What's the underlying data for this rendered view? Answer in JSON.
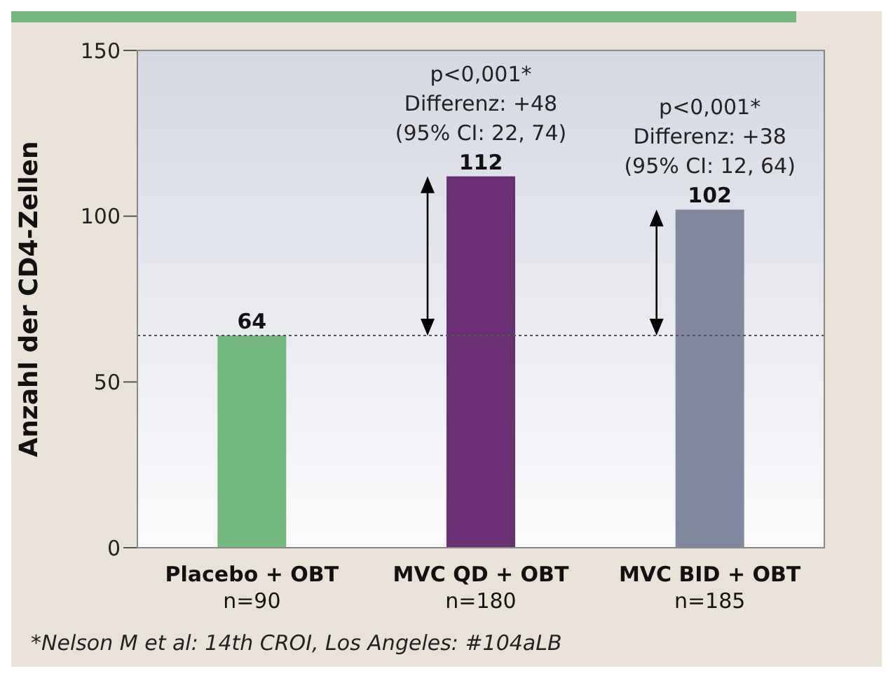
{
  "chart_data": {
    "type": "bar",
    "ylabel": "Anzahl der CD4-Zellen",
    "categories": [
      "Placebo + OBT\nn=90",
      "MVC QD + OBT\nn=180",
      "MVC BID + OBT\nn=185"
    ],
    "values": [
      64,
      112,
      102
    ],
    "colors": [
      "#72b97d",
      "#6b2f76",
      "#82889e"
    ],
    "ylim": [
      0,
      150
    ],
    "yticks": [
      0,
      50,
      100,
      150
    ],
    "grid": false,
    "data_labels": true,
    "ref_lines": [
      {
        "axis": "y",
        "value": 64,
        "line_style": "dotted",
        "color": "#555555"
      }
    ],
    "annotations": [
      {
        "text": "p<0,001*\nDifferenz: +48\n(95% CI: 22, 74)",
        "x": "MVC QD + OBT\nn=180",
        "y": 112
      },
      {
        "text": "p<0,001*\nDifferenz: +38\n(95% CI: 12, 64)",
        "x": "MVC BID + OBT\nn=185",
        "y": 102
      },
      "*Nelson M et al: 14th CROI, Los Angeles: #104aLB"
    ]
  }
}
